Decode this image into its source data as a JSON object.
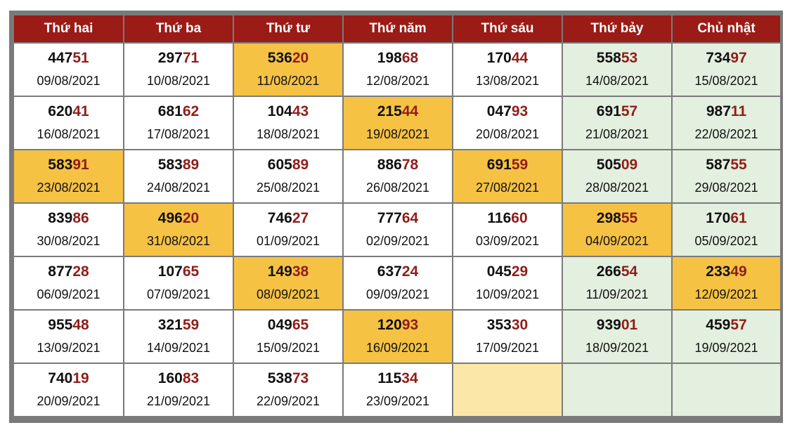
{
  "colors": {
    "header_bg": "#9b1b17",
    "header_text": "#ffffff",
    "highlight": "#f6c244",
    "weekend_bg": "#e3efdf",
    "empty_highlight": "#fbe8a8",
    "tail_digits": "#8f1e1a",
    "border": "#7a7a7a"
  },
  "headers": [
    "Thứ hai",
    "Thứ ba",
    "Thứ tư",
    "Thứ năm",
    "Thứ sáu",
    "Thứ bảy",
    "Chủ nhật"
  ],
  "rows": [
    [
      {
        "head": "447",
        "tail": "51",
        "date": "09/08/2021",
        "style": "normal"
      },
      {
        "head": "297",
        "tail": "71",
        "date": "10/08/2021",
        "style": "normal"
      },
      {
        "head": "536",
        "tail": "20",
        "date": "11/08/2021",
        "style": "hl"
      },
      {
        "head": "198",
        "tail": "68",
        "date": "12/08/2021",
        "style": "normal"
      },
      {
        "head": "170",
        "tail": "44",
        "date": "13/08/2021",
        "style": "normal"
      },
      {
        "head": "558",
        "tail": "53",
        "date": "14/08/2021",
        "style": "weekend"
      },
      {
        "head": "734",
        "tail": "97",
        "date": "15/08/2021",
        "style": "weekend"
      }
    ],
    [
      {
        "head": "620",
        "tail": "41",
        "date": "16/08/2021",
        "style": "normal"
      },
      {
        "head": "681",
        "tail": "62",
        "date": "17/08/2021",
        "style": "normal"
      },
      {
        "head": "104",
        "tail": "43",
        "date": "18/08/2021",
        "style": "normal"
      },
      {
        "head": "215",
        "tail": "44",
        "date": "19/08/2021",
        "style": "hl"
      },
      {
        "head": "047",
        "tail": "93",
        "date": "20/08/2021",
        "style": "normal"
      },
      {
        "head": "691",
        "tail": "57",
        "date": "21/08/2021",
        "style": "weekend"
      },
      {
        "head": "987",
        "tail": "11",
        "date": "22/08/2021",
        "style": "weekend"
      }
    ],
    [
      {
        "head": "583",
        "tail": "91",
        "date": "23/08/2021",
        "style": "hl"
      },
      {
        "head": "583",
        "tail": "89",
        "date": "24/08/2021",
        "style": "normal"
      },
      {
        "head": "605",
        "tail": "89",
        "date": "25/08/2021",
        "style": "normal"
      },
      {
        "head": "886",
        "tail": "78",
        "date": "26/08/2021",
        "style": "normal"
      },
      {
        "head": "691",
        "tail": "59",
        "date": "27/08/2021",
        "style": "hl"
      },
      {
        "head": "505",
        "tail": "09",
        "date": "28/08/2021",
        "style": "weekend"
      },
      {
        "head": "587",
        "tail": "55",
        "date": "29/08/2021",
        "style": "weekend"
      }
    ],
    [
      {
        "head": "839",
        "tail": "86",
        "date": "30/08/2021",
        "style": "normal"
      },
      {
        "head": "496",
        "tail": "20",
        "date": "31/08/2021",
        "style": "hl"
      },
      {
        "head": "746",
        "tail": "27",
        "date": "01/09/2021",
        "style": "normal"
      },
      {
        "head": "777",
        "tail": "64",
        "date": "02/09/2021",
        "style": "normal"
      },
      {
        "head": "116",
        "tail": "60",
        "date": "03/09/2021",
        "style": "normal"
      },
      {
        "head": "298",
        "tail": "55",
        "date": "04/09/2021",
        "style": "hl"
      },
      {
        "head": "170",
        "tail": "61",
        "date": "05/09/2021",
        "style": "weekend"
      }
    ],
    [
      {
        "head": "877",
        "tail": "28",
        "date": "06/09/2021",
        "style": "normal"
      },
      {
        "head": "107",
        "tail": "65",
        "date": "07/09/2021",
        "style": "normal"
      },
      {
        "head": "149",
        "tail": "38",
        "date": "08/09/2021",
        "style": "hl"
      },
      {
        "head": "637",
        "tail": "24",
        "date": "09/09/2021",
        "style": "normal"
      },
      {
        "head": "045",
        "tail": "29",
        "date": "10/09/2021",
        "style": "normal"
      },
      {
        "head": "266",
        "tail": "54",
        "date": "11/09/2021",
        "style": "weekend"
      },
      {
        "head": "233",
        "tail": "49",
        "date": "12/09/2021",
        "style": "hl"
      }
    ],
    [
      {
        "head": "955",
        "tail": "48",
        "date": "13/09/2021",
        "style": "normal"
      },
      {
        "head": "321",
        "tail": "59",
        "date": "14/09/2021",
        "style": "normal"
      },
      {
        "head": "049",
        "tail": "65",
        "date": "15/09/2021",
        "style": "normal"
      },
      {
        "head": "120",
        "tail": "93",
        "date": "16/09/2021",
        "style": "hl"
      },
      {
        "head": "353",
        "tail": "30",
        "date": "17/09/2021",
        "style": "normal"
      },
      {
        "head": "939",
        "tail": "01",
        "date": "18/09/2021",
        "style": "weekend"
      },
      {
        "head": "459",
        "tail": "57",
        "date": "19/09/2021",
        "style": "weekend"
      }
    ],
    [
      {
        "head": "740",
        "tail": "19",
        "date": "20/09/2021",
        "style": "normal"
      },
      {
        "head": "160",
        "tail": "83",
        "date": "21/09/2021",
        "style": "normal"
      },
      {
        "head": "538",
        "tail": "73",
        "date": "22/09/2021",
        "style": "normal"
      },
      {
        "head": "115",
        "tail": "34",
        "date": "23/09/2021",
        "style": "normal"
      },
      {
        "head": "",
        "tail": "",
        "date": "",
        "style": "empty-yellow"
      },
      {
        "head": "",
        "tail": "",
        "date": "",
        "style": "weekend"
      },
      {
        "head": "",
        "tail": "",
        "date": "",
        "style": "weekend"
      }
    ]
  ]
}
